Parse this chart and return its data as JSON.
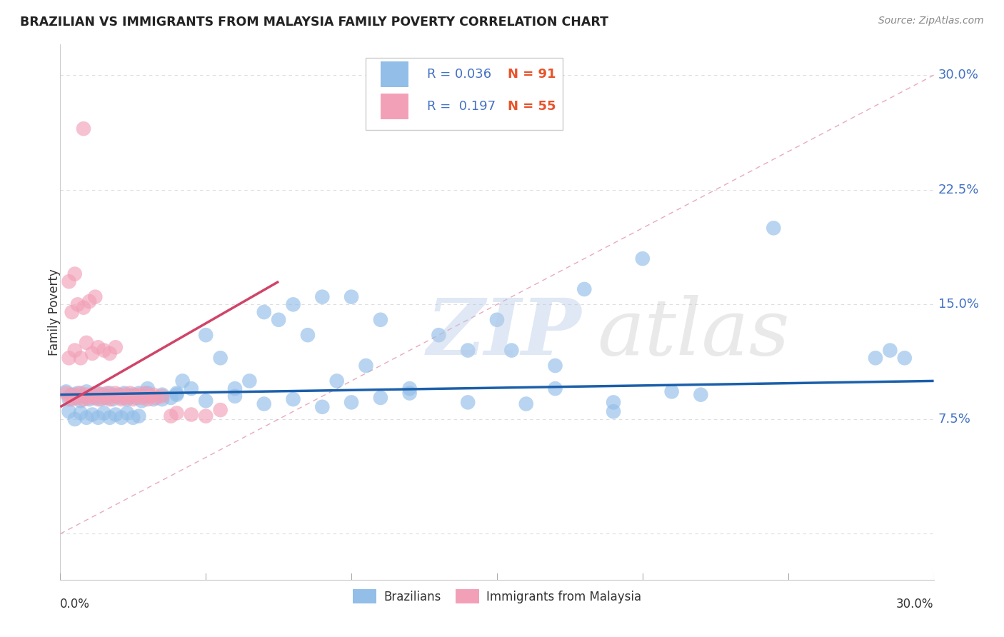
{
  "title": "BRAZILIAN VS IMMIGRANTS FROM MALAYSIA FAMILY POVERTY CORRELATION CHART",
  "source": "Source: ZipAtlas.com",
  "ylabel": "Family Poverty",
  "xmin": 0.0,
  "xmax": 0.3,
  "ymin": -0.03,
  "ymax": 0.32,
  "legend_R_blue": "0.036",
  "legend_N_blue": "91",
  "legend_R_pink": "0.197",
  "legend_N_pink": "55",
  "blue_color": "#92BEE8",
  "pink_color": "#F2A0B8",
  "blue_line_color": "#1B5FAA",
  "pink_line_color": "#D04468",
  "diagonal_line_color": "#E8AABB",
  "grid_color": "#DEDEDE",
  "ytick_vals": [
    0.0,
    0.075,
    0.15,
    0.225,
    0.3
  ],
  "ytick_labels": [
    "",
    "7.5%",
    "15.0%",
    "22.5%",
    "30.0%"
  ],
  "xtick_positions": [
    0.0,
    0.05,
    0.1,
    0.15,
    0.2,
    0.25,
    0.3
  ],
  "blue_x": [
    0.002,
    0.003,
    0.004,
    0.005,
    0.006,
    0.007,
    0.008,
    0.009,
    0.01,
    0.011,
    0.012,
    0.013,
    0.014,
    0.015,
    0.016,
    0.017,
    0.018,
    0.019,
    0.02,
    0.021,
    0.022,
    0.023,
    0.024,
    0.025,
    0.026,
    0.027,
    0.028,
    0.029,
    0.03,
    0.032,
    0.035,
    0.038,
    0.04,
    0.042,
    0.045,
    0.05,
    0.055,
    0.06,
    0.065,
    0.07,
    0.075,
    0.08,
    0.085,
    0.09,
    0.095,
    0.1,
    0.105,
    0.11,
    0.12,
    0.13,
    0.14,
    0.15,
    0.16,
    0.17,
    0.18,
    0.19,
    0.2,
    0.21,
    0.22,
    0.245,
    0.003,
    0.005,
    0.007,
    0.009,
    0.011,
    0.013,
    0.015,
    0.017,
    0.019,
    0.021,
    0.023,
    0.025,
    0.027,
    0.03,
    0.035,
    0.04,
    0.05,
    0.06,
    0.07,
    0.08,
    0.09,
    0.1,
    0.11,
    0.12,
    0.14,
    0.155,
    0.17,
    0.19,
    0.28,
    0.285,
    0.29
  ],
  "blue_y": [
    0.093,
    0.088,
    0.091,
    0.089,
    0.092,
    0.087,
    0.09,
    0.093,
    0.088,
    0.091,
    0.089,
    0.092,
    0.088,
    0.091,
    0.089,
    0.092,
    0.088,
    0.09,
    0.091,
    0.089,
    0.092,
    0.088,
    0.09,
    0.091,
    0.089,
    0.092,
    0.087,
    0.09,
    0.092,
    0.088,
    0.091,
    0.089,
    0.092,
    0.1,
    0.095,
    0.13,
    0.115,
    0.095,
    0.1,
    0.145,
    0.14,
    0.15,
    0.13,
    0.155,
    0.1,
    0.155,
    0.11,
    0.14,
    0.095,
    0.13,
    0.12,
    0.14,
    0.085,
    0.11,
    0.16,
    0.08,
    0.18,
    0.093,
    0.091,
    0.2,
    0.08,
    0.075,
    0.079,
    0.076,
    0.078,
    0.076,
    0.079,
    0.076,
    0.078,
    0.076,
    0.079,
    0.076,
    0.077,
    0.095,
    0.088,
    0.091,
    0.087,
    0.09,
    0.085,
    0.088,
    0.083,
    0.086,
    0.089,
    0.092,
    0.086,
    0.12,
    0.095,
    0.086,
    0.115,
    0.12,
    0.115
  ],
  "pink_x": [
    0.002,
    0.003,
    0.004,
    0.005,
    0.006,
    0.007,
    0.008,
    0.009,
    0.01,
    0.011,
    0.012,
    0.013,
    0.014,
    0.015,
    0.016,
    0.017,
    0.018,
    0.019,
    0.02,
    0.021,
    0.022,
    0.023,
    0.024,
    0.025,
    0.026,
    0.027,
    0.028,
    0.029,
    0.03,
    0.031,
    0.032,
    0.033,
    0.035,
    0.038,
    0.04,
    0.045,
    0.05,
    0.055,
    0.003,
    0.005,
    0.007,
    0.009,
    0.011,
    0.013,
    0.015,
    0.017,
    0.019,
    0.004,
    0.006,
    0.008,
    0.01,
    0.012,
    0.003,
    0.005,
    0.008
  ],
  "pink_y": [
    0.092,
    0.09,
    0.088,
    0.091,
    0.089,
    0.092,
    0.088,
    0.091,
    0.089,
    0.09,
    0.092,
    0.088,
    0.091,
    0.089,
    0.092,
    0.088,
    0.09,
    0.092,
    0.09,
    0.088,
    0.091,
    0.089,
    0.092,
    0.088,
    0.09,
    0.091,
    0.089,
    0.092,
    0.088,
    0.09,
    0.091,
    0.089,
    0.09,
    0.077,
    0.079,
    0.078,
    0.077,
    0.081,
    0.115,
    0.12,
    0.115,
    0.125,
    0.118,
    0.122,
    0.12,
    0.118,
    0.122,
    0.145,
    0.15,
    0.148,
    0.152,
    0.155,
    0.165,
    0.17,
    0.265
  ],
  "blue_line_x": [
    0.0,
    0.3
  ],
  "blue_line_y": [
    0.091,
    0.1
  ],
  "pink_line_x": [
    0.0,
    0.075
  ],
  "pink_line_y": [
    0.083,
    0.165
  ]
}
